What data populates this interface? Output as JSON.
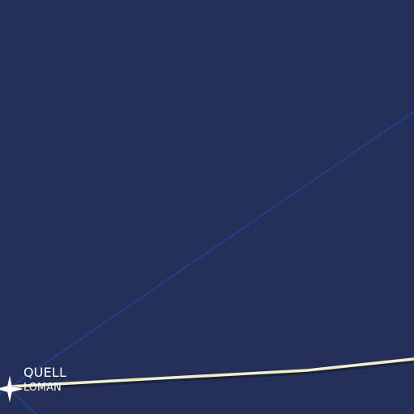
{
  "map": {
    "background_color": "#243058",
    "airway_color": "#233f8a",
    "route_color": "#f2efc4",
    "waypoint_icon": "waypoint-star-icon",
    "waypoint": {
      "name": "QUELL",
      "sublabel": "LOMAN"
    }
  }
}
